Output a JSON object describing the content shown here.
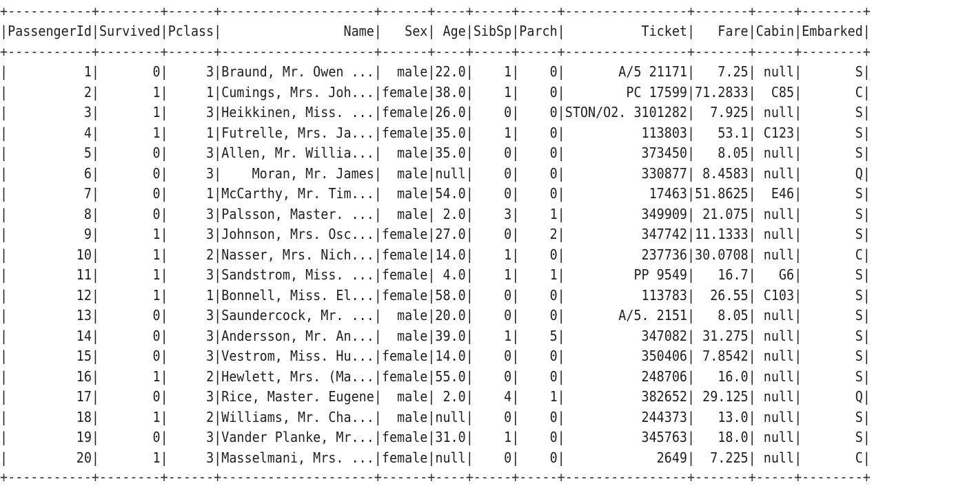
{
  "table": {
    "separator": "+-----------+--------+------+--------------------+------+----+-----+-----+----------------+-------+-----+--------+",
    "header": "|PassengerId|Survived|Pclass|                Name|   Sex| Age|SibSp|Parch|          Ticket|   Fare|Cabin|Embarked|",
    "columns": [
      "PassengerId",
      "Survived",
      "Pclass",
      "Name",
      "Sex",
      "Age",
      "SibSp",
      "Parch",
      "Ticket",
      "Fare",
      "Cabin",
      "Embarked"
    ],
    "rows": [
      "|          1|       0|     3|Braund, Mr. Owen ...|  male|22.0|    1|    0|       A/5 21171|   7.25| null|       S|",
      "|          2|       1|     1|Cumings, Mrs. Joh...|female|38.0|    1|    0|        PC 17599|71.2833|  C85|       C|",
      "|          3|       1|     3|Heikkinen, Miss. ...|female|26.0|    0|    0|STON/O2. 3101282|  7.925| null|       S|",
      "|          4|       1|     1|Futrelle, Mrs. Ja...|female|35.0|    1|    0|          113803|   53.1| C123|       S|",
      "|          5|       0|     3|Allen, Mr. Willia...|  male|35.0|    0|    0|          373450|   8.05| null|       S|",
      "|          6|       0|     3|    Moran, Mr. James|  male|null|    0|    0|          330877| 8.4583| null|       Q|",
      "|          7|       0|     1|McCarthy, Mr. Tim...|  male|54.0|    0|    0|           17463|51.8625|  E46|       S|",
      "|          8|       0|     3|Palsson, Master. ...|  male| 2.0|    3|    1|          349909| 21.075| null|       S|",
      "|          9|       1|     3|Johnson, Mrs. Osc...|female|27.0|    0|    2|          347742|11.1333| null|       S|",
      "|         10|       1|     2|Nasser, Mrs. Nich...|female|14.0|    1|    0|          237736|30.0708| null|       C|",
      "|         11|       1|     3|Sandstrom, Miss. ...|female| 4.0|    1|    1|         PP 9549|   16.7|   G6|       S|",
      "|         12|       1|     1|Bonnell, Miss. El...|female|58.0|    0|    0|          113783|  26.55| C103|       S|",
      "|         13|       0|     3|Saundercock, Mr. ...|  male|20.0|    0|    0|       A/5. 2151|   8.05| null|       S|",
      "|         14|       0|     3|Andersson, Mr. An...|  male|39.0|    1|    5|          347082| 31.275| null|       S|",
      "|         15|       0|     3|Vestrom, Miss. Hu...|female|14.0|    0|    0|          350406| 7.8542| null|       S|",
      "|         16|       1|     2|Hewlett, Mrs. (Ma...|female|55.0|    0|    0|          248706|   16.0| null|       S|",
      "|         17|       0|     3|Rice, Master. Eugene|  male| 2.0|    4|    1|          382652| 29.125| null|       Q|",
      "|         18|       1|     2|Williams, Mr. Cha...|  male|null|    0|    0|          244373|   13.0| null|       S|",
      "|         19|       0|     3|Vander Planke, Mr...|female|31.0|    1|    0|          345763|   18.0| null|       S|",
      "|         20|       1|     3|Masselmani, Mrs. ...|female|null|    0|    0|            2649|  7.225| null|       C|"
    ]
  }
}
